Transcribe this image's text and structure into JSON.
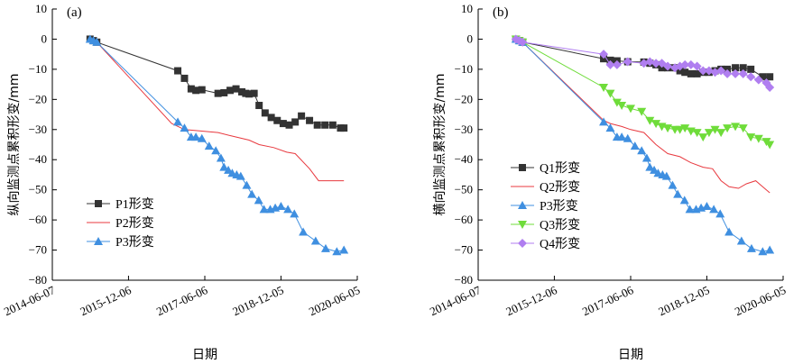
{
  "chart_data": [
    {
      "type": "line",
      "panel_label": "(a)",
      "xlabel": "日期",
      "ylabel": "纵向监测点累积形变/mm",
      "ylim": [
        -80,
        10
      ],
      "y_ticks": [
        "10",
        "0",
        "−10",
        "−20",
        "−30",
        "−40",
        "−50",
        "−60",
        "−70",
        "−80"
      ],
      "x_ticks": [
        "2014-06-07",
        "2015-12-06",
        "2017-06-06",
        "2018-12-05",
        "2020-06-05"
      ],
      "xlim": [
        "2014-06-07",
        "2020-06-05"
      ],
      "legend_position": "lower-left",
      "series": [
        {
          "name": "P1形变",
          "color": "#333333",
          "marker": "square",
          "x": [
            "2015-03-05",
            "2015-03-29",
            "2015-04-22",
            "2016-11-24",
            "2017-01-11",
            "2017-02-28",
            "2017-04-03",
            "2017-05-16",
            "2017-09-09",
            "2017-10-22",
            "2017-12-05",
            "2018-01-16",
            "2018-02-27",
            "2018-03-27",
            "2018-04-20",
            "2018-05-26",
            "2018-07-01",
            "2018-08-13",
            "2018-09-26",
            "2018-11-08",
            "2018-12-21",
            "2019-02-02",
            "2019-03-17",
            "2019-05-01",
            "2019-06-28",
            "2019-08-23",
            "2019-10-17",
            "2019-12-12",
            "2020-02-06",
            "2020-03-01"
          ],
          "y": [
            0,
            -0.5,
            -1,
            -10.5,
            -13,
            -16.5,
            -17,
            -16.8,
            -18,
            -17.8,
            -17,
            -16.5,
            -17.5,
            -18,
            -18.2,
            -18,
            -22,
            -24.5,
            -26,
            -27,
            -28,
            -28.5,
            -27.5,
            -25.5,
            -27,
            -28.5,
            -28.5,
            -28.5,
            -29.5,
            -29.5
          ]
        },
        {
          "name": "P2形变",
          "color": "#e8393f",
          "marker": "none",
          "x": [
            "2015-03-05",
            "2015-04-22",
            "2016-10-11",
            "2017-01-11",
            "2017-05-16",
            "2017-09-09",
            "2017-12-05",
            "2018-04-20",
            "2018-07-01",
            "2018-10-14",
            "2019-01-15",
            "2019-03-17",
            "2019-06-28",
            "2019-09-01",
            "2020-03-01"
          ],
          "y": [
            0,
            -1,
            -28,
            -30,
            -30.5,
            -31,
            -32,
            -33.5,
            -35,
            -36,
            -37.5,
            -38,
            -43,
            -47,
            -47
          ]
        },
        {
          "name": "P3形变",
          "color": "#3f8fe0",
          "marker": "triangle",
          "x": [
            "2015-03-05",
            "2015-03-29",
            "2015-04-22",
            "2016-11-24",
            "2017-01-11",
            "2017-02-28",
            "2017-04-03",
            "2017-05-16",
            "2017-07-07",
            "2017-08-24",
            "2017-09-30",
            "2017-10-22",
            "2017-11-22",
            "2017-12-20",
            "2018-01-21",
            "2018-02-19",
            "2018-04-03",
            "2018-05-10",
            "2018-06-28",
            "2018-08-05",
            "2018-09-19",
            "2018-10-25",
            "2018-12-05",
            "2019-01-24",
            "2019-03-11",
            "2019-05-14",
            "2019-08-11",
            "2019-10-22",
            "2020-01-10",
            "2020-03-01"
          ],
          "y": [
            0,
            -0.5,
            -1,
            -27.5,
            -29.5,
            -32.5,
            -32.5,
            -33,
            -35.5,
            -37,
            -39.5,
            -42.5,
            -43.5,
            -44.5,
            -45,
            -45.5,
            -48.5,
            -51.5,
            -53.5,
            -56.5,
            -56.5,
            -56,
            -55.5,
            -56.5,
            -58,
            -64,
            -67,
            -69.5,
            -70.5,
            -70
          ]
        }
      ]
    },
    {
      "type": "line",
      "panel_label": "(b)",
      "xlabel": "日期",
      "ylabel": "横向监测点累积形变/mm",
      "ylim": [
        -80,
        10
      ],
      "y_ticks": [
        "10",
        "0",
        "−10",
        "−20",
        "−30",
        "−40",
        "−50",
        "−60",
        "−70",
        "−80"
      ],
      "x_ticks": [
        "2014-06-07",
        "2015-12-06",
        "2017-06-06",
        "2018-12-05",
        "2020-06-05"
      ],
      "xlim": [
        "2014-06-07",
        "2020-06-05"
      ],
      "legend_position": "lower-left",
      "series": [
        {
          "name": "Q1形变",
          "color": "#333333",
          "marker": "square",
          "x": [
            "2015-03-05",
            "2015-03-29",
            "2015-04-22",
            "2016-11-24",
            "2017-01-11",
            "2017-02-28",
            "2017-05-16",
            "2017-09-09",
            "2017-10-22",
            "2017-12-05",
            "2018-01-16",
            "2018-02-27",
            "2018-04-20",
            "2018-05-26",
            "2018-07-01",
            "2018-08-13",
            "2018-09-26",
            "2018-11-08",
            "2018-12-21",
            "2019-02-02",
            "2019-03-17",
            "2019-05-01",
            "2019-06-28",
            "2019-08-23",
            "2019-10-17",
            "2020-01-10",
            "2020-03-01"
          ],
          "y": [
            0,
            -0.5,
            -1,
            -6.5,
            -7,
            -7.2,
            -7.5,
            -7.6,
            -8,
            -8.5,
            -9.5,
            -9.5,
            -9.5,
            -10.5,
            -11,
            -11.5,
            -11.5,
            -11,
            -11,
            -10.5,
            -10,
            -10,
            -9.5,
            -9.5,
            -10,
            -12.5,
            -12.5
          ]
        },
        {
          "name": "Q2形变",
          "color": "#e8393f",
          "marker": "none",
          "x": [
            "2015-03-05",
            "2015-04-22",
            "2016-11-24",
            "2017-01-11",
            "2017-04-03",
            "2017-06-06",
            "2017-09-09",
            "2017-12-05",
            "2018-02-27",
            "2018-05-26",
            "2018-08-13",
            "2018-11-08",
            "2019-01-15",
            "2019-03-17",
            "2019-05-14",
            "2019-07-20",
            "2019-09-15",
            "2019-11-21",
            "2020-01-10",
            "2020-03-01"
          ],
          "y": [
            0,
            -1,
            -27,
            -28,
            -29,
            -30,
            -31,
            -35,
            -38,
            -39,
            -41,
            -42.5,
            -43,
            -47,
            -49,
            -49.5,
            -48,
            -47,
            -49,
            -51
          ]
        },
        {
          "name": "P3形变",
          "color": "#3f8fe0",
          "marker": "triangle",
          "x": [
            "2015-03-05",
            "2015-03-29",
            "2015-04-22",
            "2016-11-24",
            "2017-01-11",
            "2017-02-28",
            "2017-04-03",
            "2017-05-16",
            "2017-07-07",
            "2017-08-24",
            "2017-09-30",
            "2017-10-22",
            "2017-11-22",
            "2017-12-20",
            "2018-01-21",
            "2018-02-19",
            "2018-04-03",
            "2018-05-10",
            "2018-06-28",
            "2018-08-05",
            "2018-09-19",
            "2018-10-25",
            "2018-12-05",
            "2019-01-24",
            "2019-03-11",
            "2019-05-14",
            "2019-08-11",
            "2019-10-22",
            "2020-01-10",
            "2020-03-01"
          ],
          "y": [
            0,
            -0.5,
            -1,
            -27.5,
            -29.5,
            -32.5,
            -32.5,
            -33,
            -35.5,
            -37,
            -39.5,
            -42.5,
            -43.5,
            -44.5,
            -45,
            -45.5,
            -48.5,
            -51.5,
            -53.5,
            -56.5,
            -56.5,
            -56,
            -55.5,
            -56.5,
            -58,
            -64,
            -67,
            -69.5,
            -70.5,
            -70
          ]
        },
        {
          "name": "Q3形变",
          "color": "#6fdc3a",
          "marker": "triangle-down",
          "x": [
            "2015-03-05",
            "2015-03-29",
            "2015-04-22",
            "2016-11-24",
            "2017-01-11",
            "2017-02-28",
            "2017-04-03",
            "2017-06-06",
            "2017-08-24",
            "2017-10-22",
            "2017-12-05",
            "2018-01-16",
            "2018-02-27",
            "2018-04-20",
            "2018-05-26",
            "2018-07-01",
            "2018-08-13",
            "2018-09-26",
            "2018-11-08",
            "2018-12-21",
            "2019-02-02",
            "2019-03-17",
            "2019-05-01",
            "2019-06-28",
            "2019-08-23",
            "2019-10-17",
            "2019-12-12",
            "2020-02-06",
            "2020-03-01"
          ],
          "y": [
            0,
            -0.5,
            -1,
            -16,
            -18,
            -21,
            -22,
            -23,
            -24,
            -27,
            -28,
            -29,
            -29.5,
            -30,
            -30,
            -29.5,
            -30.5,
            -31,
            -32.5,
            -31,
            -30,
            -31,
            -29.5,
            -29,
            -29.5,
            -32.5,
            -33,
            -34,
            -35
          ]
        },
        {
          "name": "Q4形变",
          "color": "#b07ef0",
          "marker": "diamond",
          "x": [
            "2015-03-05",
            "2015-03-29",
            "2015-04-22",
            "2016-11-24",
            "2017-01-11",
            "2017-02-28",
            "2017-05-16",
            "2017-09-09",
            "2017-10-22",
            "2017-12-05",
            "2018-01-16",
            "2018-02-27",
            "2018-04-20",
            "2018-05-26",
            "2018-07-01",
            "2018-08-13",
            "2018-09-26",
            "2018-11-08",
            "2018-12-21",
            "2019-02-02",
            "2019-03-17",
            "2019-05-01",
            "2019-06-28",
            "2019-08-23",
            "2019-10-17",
            "2019-12-12",
            "2020-02-06",
            "2020-03-01"
          ],
          "y": [
            0,
            -0.5,
            -1,
            -5,
            -8.5,
            -8.5,
            -7.5,
            -8,
            -7.5,
            -8,
            -8,
            -9,
            -9.5,
            -9,
            -8.5,
            -8.5,
            -9,
            -10.5,
            -10.5,
            -11,
            -10.5,
            -11.5,
            -11.5,
            -11.5,
            -12.5,
            -13.5,
            -14.5,
            -16
          ]
        }
      ]
    }
  ]
}
